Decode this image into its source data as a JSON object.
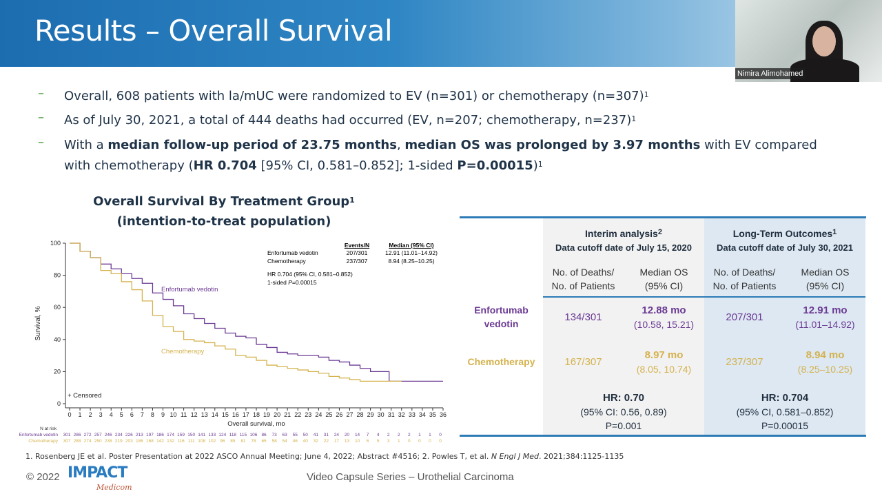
{
  "slide": {
    "title": "Results – Overall Survival"
  },
  "webcam": {
    "name": "Nimira Alimohamed"
  },
  "bullets": [
    {
      "dash": "–",
      "html": "Overall, 608 patients with la/mUC were randomized to EV (n=301) or chemotherapy (n=307)<sup>1</sup>"
    },
    {
      "dash": "–",
      "html": "As of July 30, 2021, a total of 444 deaths had occurred (EV, n=207; chemotherapy, n=237)<sup>1</sup>"
    },
    {
      "dash": "–",
      "html": "With a <b>median follow-up period of 23.75 months</b>, <b>median OS was prolonged by 3.97 months</b> with EV compared with chemotherapy (<b>HR 0.704</b> [95% CI, 0.581–0.852]; 1-sided <b>P=0.00015</b>)<sup>1</sup>"
    }
  ],
  "chart_title": {
    "line1": "Overall Survival By Treatment Group",
    "sup": "1",
    "line2": "(intention-to-treat population)"
  },
  "colors": {
    "ev": "#6b3a93",
    "chemo": "#d4b24e",
    "accent": "#2c7bb6"
  },
  "chart_data": {
    "type": "line",
    "subtype": "kaplan-meier",
    "xlabel": "Overall survival, mo",
    "ylabel": "Survival, %",
    "xlim": [
      0,
      36
    ],
    "ylim": [
      0,
      100
    ],
    "xticks": [
      0,
      1,
      2,
      3,
      4,
      5,
      6,
      7,
      8,
      9,
      10,
      11,
      12,
      13,
      14,
      15,
      16,
      17,
      18,
      19,
      20,
      21,
      22,
      23,
      24,
      25,
      26,
      27,
      28,
      29,
      30,
      31,
      32,
      33,
      34,
      35,
      36
    ],
    "yticks": [
      0,
      20,
      40,
      60,
      80,
      100
    ],
    "censored_legend": "+ Censored",
    "series": [
      {
        "name": "Enfortumab vedotin",
        "x": [
          0,
          1,
          2,
          3,
          4,
          5,
          6,
          7,
          8,
          9,
          10,
          11,
          12,
          13,
          14,
          15,
          16,
          17,
          18,
          19,
          20,
          21,
          22,
          23,
          24,
          25,
          26,
          27,
          28,
          29,
          30,
          30.8,
          36
        ],
        "y": [
          100,
          95,
          91,
          87,
          84,
          81,
          78,
          75,
          69,
          65,
          61,
          56,
          53,
          50,
          47,
          44,
          42,
          41,
          37,
          35,
          32,
          31,
          30,
          30,
          29,
          27,
          26,
          24,
          22,
          20,
          20,
          14,
          14
        ]
      },
      {
        "name": "Chemotherapy",
        "x": [
          0,
          1,
          2,
          3,
          4,
          5,
          6,
          7,
          8,
          9,
          10,
          11,
          12,
          13,
          14,
          15,
          16,
          17,
          18,
          19,
          20,
          21,
          22,
          23,
          24,
          25,
          26,
          27,
          28,
          29,
          30,
          31,
          32
        ],
        "y": [
          100,
          95,
          91,
          83,
          81,
          76,
          71,
          64,
          55,
          48,
          45,
          40,
          39,
          38,
          36,
          34,
          30,
          29,
          27,
          24,
          23,
          22,
          21,
          20,
          19,
          17,
          16,
          15,
          14,
          14,
          14,
          14,
          14
        ]
      }
    ],
    "stats_table": {
      "headers": [
        "Events/N",
        "Median (95% CI)"
      ],
      "rows": [
        [
          "Enfortumab vedotin",
          "207/301",
          "12.91 (11.01–14.92)"
        ],
        [
          "Chemotherapy",
          "237/307",
          "8.94 (8.25–10.25)"
        ]
      ],
      "hr": "HR 0.704 (95% CI, 0.581–0.852)",
      "p_prefix": "1-sided ",
      "p_italic": "P",
      "p_value": "=0.00015"
    },
    "at_risk": {
      "label": "N at risk",
      "rows": [
        {
          "name": "Enfortumab vedotin",
          "values": [
            301,
            286,
            272,
            257,
            246,
            234,
            226,
            213,
            197,
            186,
            174,
            159,
            150,
            141,
            133,
            124,
            118,
            115,
            106,
            86,
            73,
            63,
            55,
            50,
            41,
            31,
            24,
            20,
            14,
            7,
            4,
            2,
            2,
            2,
            1,
            1,
            0
          ]
        },
        {
          "name": "Chemotherapy",
          "values": [
            307,
            288,
            274,
            250,
            238,
            219,
            203,
            186,
            168,
            142,
            132,
            116,
            111,
            108,
            102,
            96,
            85,
            81,
            78,
            65,
            58,
            54,
            46,
            40,
            32,
            22,
            17,
            13,
            10,
            6,
            5,
            3,
            1,
            0,
            0,
            0,
            0
          ]
        }
      ]
    }
  },
  "table": {
    "groups": [
      {
        "title": "Interim analysis",
        "sup": "2",
        "subtitle": "Data cutoff date of July 15, 2020"
      },
      {
        "title": "Long-Term Outcomes",
        "sup": "1",
        "subtitle": "Data cutoff date of July 30, 2021"
      }
    ],
    "col_headers": [
      "No. of Deaths/\nNo. of Patients",
      "Median OS\n(95% CI)",
      "No. of Deaths/\nNo. of Patients",
      "Median OS\n(95% CI)"
    ],
    "rows": [
      {
        "label": "Enfortumab\nvedotin",
        "cells": [
          {
            "main": "134/301"
          },
          {
            "main": "12.88 mo",
            "ci": "(10.58, 15.21)"
          },
          {
            "main": "207/301"
          },
          {
            "main": "12.91 mo",
            "ci": "(11.01–14.92)"
          }
        ]
      },
      {
        "label": "Chemotherapy",
        "cells": [
          {
            "main": "167/307"
          },
          {
            "main": "8.97 mo",
            "ci": "(8.05, 10.74)"
          },
          {
            "main": "237/307"
          },
          {
            "main": "8.94 mo",
            "ci": "(8.25–10.25)"
          }
        ]
      }
    ],
    "hr": [
      {
        "hr": "HR: 0.70",
        "ci": "(95% CI: 0.56, 0.89)",
        "p": "P=0.001"
      },
      {
        "hr": "HR: 0.704",
        "ci": "(95% CI, 0.581–0.852)",
        "p": "P=0.00015"
      }
    ]
  },
  "footer": {
    "footnote_a": "1. Rosenberg JE et al. Poster Presentation at 2022 ASCO Annual Meeting; June 4, 2022; Abstract #4516; 2. Powles T, et al. ",
    "footnote_i": "N Engl J Med",
    "footnote_b": ". 2021;384:1125-1135",
    "copyright": "© 2022",
    "logo": "IMPACT",
    "logo_sub": "Medicom",
    "series": "Video Capsule Series – Urothelial Carcinoma"
  }
}
